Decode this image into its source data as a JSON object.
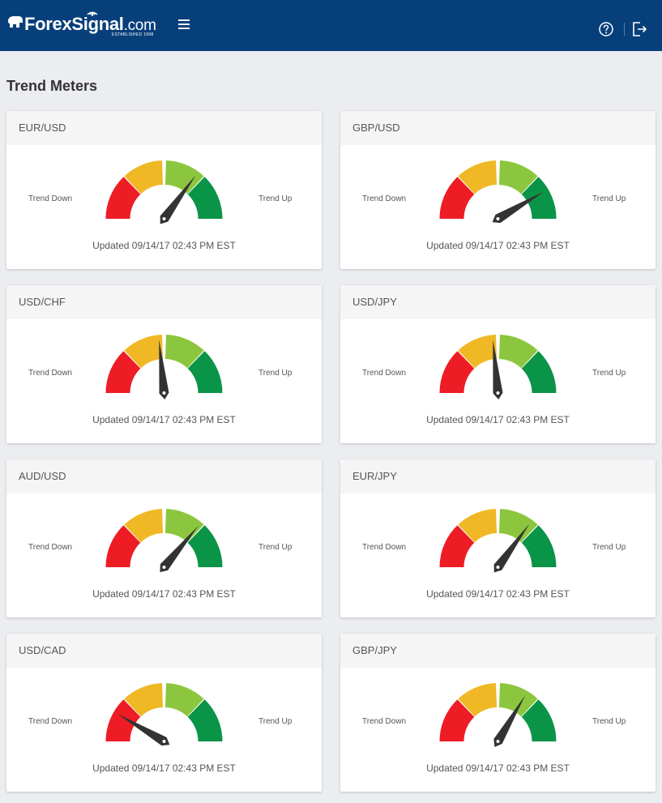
{
  "header": {
    "logo_text": "ForexSignal",
    "logo_tld": ".com",
    "logo_tagline": "ESTABLISHED 1998",
    "menu_icon": "hamburger-menu-icon",
    "help_icon": "help-circle-icon",
    "logout_icon": "logout-icon"
  },
  "page": {
    "title": "Trend Meters"
  },
  "labels": {
    "trend_down": "Trend Down",
    "trend_up": "Trend Up"
  },
  "colors": {
    "header_bg": "#073f7a",
    "zone_red": "#ee1c25",
    "zone_yellow": "#f0b825",
    "zone_lightgreen": "#8cc63e",
    "zone_green": "#0a9447",
    "needle": "#333333"
  },
  "meters": [
    {
      "pair": "EUR/USD",
      "updated": "Updated 09/14/17 02:43 PM EST",
      "reading": 0.7
    },
    {
      "pair": "GBP/USD",
      "updated": "Updated 09/14/17 02:43 PM EST",
      "reading": 0.83
    },
    {
      "pair": "USD/CHF",
      "updated": "Updated 09/14/17 02:43 PM EST",
      "reading": 0.47
    },
    {
      "pair": "USD/JPY",
      "updated": "Updated 09/14/17 02:43 PM EST",
      "reading": 0.47
    },
    {
      "pair": "AUD/USD",
      "updated": "Updated 09/14/17 02:43 PM EST",
      "reading": 0.72
    },
    {
      "pair": "EUR/JPY",
      "updated": "Updated 09/14/17 02:43 PM EST",
      "reading": 0.7
    },
    {
      "pair": "USD/CAD",
      "updated": "Updated 09/14/17 02:43 PM EST",
      "reading": 0.17
    },
    {
      "pair": "GBP/JPY",
      "updated": "Updated 09/14/17 02:43 PM EST",
      "reading": 0.67
    }
  ]
}
